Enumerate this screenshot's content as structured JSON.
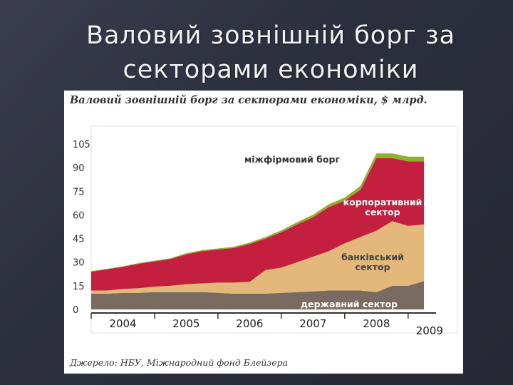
{
  "slide": {
    "title_line1": "Валовий зовнішній борг за",
    "title_line2": "секторами економіки"
  },
  "colors": {
    "background": "#2c2f3d",
    "derzhavnyi": "#7a6b60",
    "bankivskyi": "#e3b87a",
    "korporatyvnyi": "#c41f3f",
    "mizhfirmovyi": "#8fb02a"
  },
  "chart_data": {
    "type": "area",
    "stacked": true,
    "title": "Валовий зовнішній борг за секторами економіки, $ млрд.",
    "source": "Джерело: НБУ, Міжнародний фонд Блейзера",
    "xlabel": "",
    "ylabel": "",
    "ylim": [
      0,
      105
    ],
    "yticks": [
      0,
      15,
      30,
      45,
      60,
      75,
      90,
      105
    ],
    "x_tick_labels": [
      "2004",
      "2005",
      "2006",
      "2007",
      "2008",
      "2009"
    ],
    "grid": false,
    "x": [
      2004.0,
      2004.25,
      2004.5,
      2004.75,
      2005.0,
      2005.25,
      2005.5,
      2005.75,
      2006.0,
      2006.25,
      2006.5,
      2006.75,
      2007.0,
      2007.25,
      2007.5,
      2007.75,
      2008.0,
      2008.25,
      2008.5,
      2008.75,
      2009.0,
      2009.25
    ],
    "series": [
      {
        "name": "державний сектор",
        "values": [
          10,
          10,
          10.5,
          10.5,
          11,
          11,
          11,
          11,
          10.5,
          10,
          10,
          10,
          10.5,
          11,
          11.5,
          12,
          12,
          12,
          11,
          15,
          15,
          18
        ]
      },
      {
        "name": "банківський сектор",
        "values": [
          2,
          2,
          2.5,
          3,
          3.5,
          4,
          5,
          5.5,
          6.5,
          7,
          7.5,
          15,
          16,
          19,
          22,
          25,
          30,
          34,
          39,
          41,
          38,
          36
        ]
      },
      {
        "name": "корпоративний сектор",
        "values": [
          12,
          13.5,
          14,
          15.5,
          16,
          17,
          19,
          20.5,
          21,
          22,
          24,
          20,
          22.5,
          24,
          25,
          28,
          27,
          30,
          46,
          40,
          41,
          40
        ]
      },
      {
        "name": "міжфірмовий борг",
        "values": [
          0.3,
          0.3,
          0.4,
          0.4,
          0.5,
          0.5,
          0.6,
          0.6,
          0.7,
          0.8,
          0.9,
          1,
          1.2,
          1.4,
          1.6,
          1.8,
          2,
          2.5,
          3,
          3,
          3,
          3
        ]
      }
    ],
    "annotations": {
      "mizhfirmovyi": "міжфірмовий борг",
      "korporatyvnyi_line1": "корпоративний",
      "korporatyvnyi_line2": "сектор",
      "bankivskyi_line1": "банківський",
      "bankivskyi_line2": "сектор",
      "derzhavnyi": "державний сектор"
    }
  }
}
